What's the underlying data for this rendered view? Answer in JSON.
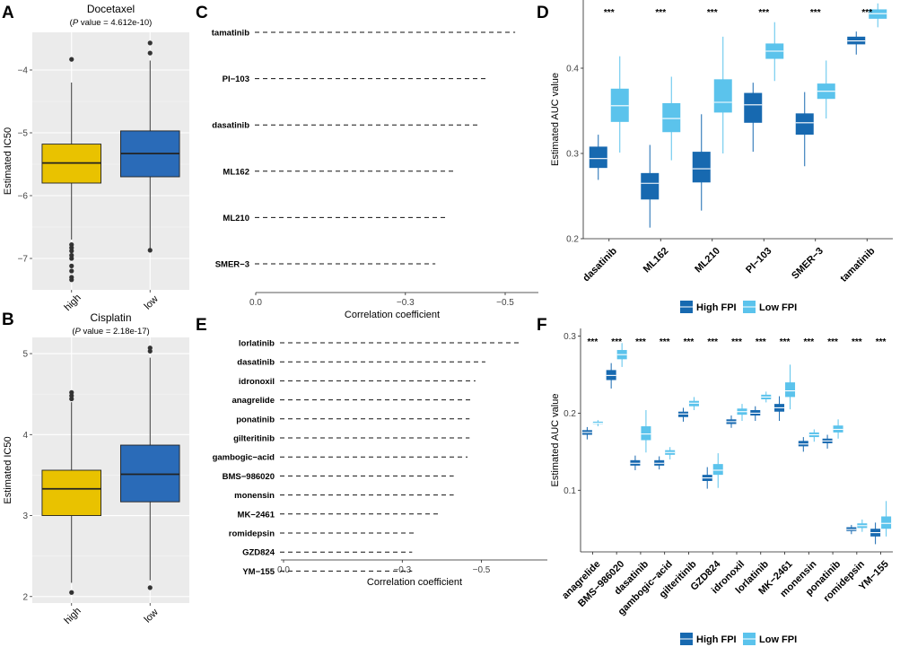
{
  "colors": {
    "high_ab": "#e9c200",
    "low_ab": "#2a6bb8",
    "high_fpi": "#1769b0",
    "low_fpi": "#5bc3ec",
    "panel_bg": "#ebebeb"
  },
  "panel_labels": {
    "a": "A",
    "b": "B",
    "c": "C",
    "d": "D",
    "e": "E",
    "f": "F"
  },
  "chart_data": [
    {
      "id": "A",
      "type": "box",
      "title": "Docetaxel",
      "subtitle_italic": "P",
      "subtitle_rest": " value = 4.612e-10)",
      "subtitle_open": "(",
      "ylabel": "Estimated IC50",
      "ylim": [
        -7.5,
        -3.4
      ],
      "yticks": [
        -7,
        -6,
        -5,
        -4
      ],
      "ytick_labels": [
        "−7",
        "−6",
        "−5",
        "−4"
      ],
      "categories": [
        "high",
        "low"
      ],
      "boxes": [
        {
          "q1": -5.8,
          "median": -5.48,
          "q3": -5.18,
          "wlo": -6.7,
          "whi": -4.2,
          "outliers": [
            -3.83,
            -6.78,
            -6.83,
            -6.88,
            -6.95,
            -7.0,
            -7.12,
            -7.2,
            -7.3,
            -7.34
          ]
        },
        {
          "q1": -5.7,
          "median": -5.33,
          "q3": -4.97,
          "wlo": -6.85,
          "whi": -3.85,
          "outliers": [
            -3.57,
            -3.73,
            -6.87
          ]
        }
      ]
    },
    {
      "id": "B",
      "type": "box",
      "title": "Cisplatin",
      "subtitle_italic": "P",
      "subtitle_rest": " value = 2.18e-17)",
      "subtitle_open": "(",
      "ylabel": "Estimated IC50",
      "ylim": [
        1.92,
        5.2
      ],
      "yticks": [
        2,
        3,
        4,
        5
      ],
      "ytick_labels": [
        "2",
        "3",
        "4",
        "5"
      ],
      "categories": [
        "high",
        "low"
      ],
      "boxes": [
        {
          "q1": 3.0,
          "median": 3.33,
          "q3": 3.56,
          "wlo": 2.17,
          "whi": 4.4,
          "outliers": [
            4.44,
            4.48,
            4.52,
            2.05
          ]
        },
        {
          "q1": 3.17,
          "median": 3.51,
          "q3": 3.87,
          "wlo": 2.2,
          "whi": 4.95,
          "outliers": [
            5.03,
            5.07,
            2.11
          ]
        }
      ]
    },
    {
      "id": "C",
      "type": "lollipop",
      "xlabel": "Correlation coefficient",
      "xticks": [
        "0.0",
        "−0.3",
        "−0.5"
      ],
      "drugs": [
        "tamatinib",
        "PI−103",
        "dasatinib",
        "ML162",
        "ML210",
        "SMER−3"
      ],
      "values": [
        -0.52,
        -0.465,
        -0.445,
        -0.4,
        -0.38,
        -0.36
      ]
    },
    {
      "id": "D",
      "type": "box",
      "ylabel": "Estimated AUC value",
      "ylim": [
        0.2,
        0.48
      ],
      "yticks": [
        0.2,
        0.3,
        0.4
      ],
      "ytick_labels": [
        "0.2",
        "0.3",
        "0.4"
      ],
      "categories": [
        "dasatinib",
        "ML162",
        "ML210",
        "PI−103",
        "SMER−3",
        "tamatinib"
      ],
      "sig": "***",
      "legend": [
        "High FPI",
        "Low FPI"
      ],
      "high": [
        {
          "q1": 0.283,
          "median": 0.294,
          "q3": 0.308,
          "wlo": 0.269,
          "whi": 0.322
        },
        {
          "q1": 0.246,
          "median": 0.265,
          "q3": 0.277,
          "wlo": 0.213,
          "whi": 0.31
        },
        {
          "q1": 0.266,
          "median": 0.282,
          "q3": 0.302,
          "wlo": 0.233,
          "whi": 0.346
        },
        {
          "q1": 0.336,
          "median": 0.357,
          "q3": 0.371,
          "wlo": 0.302,
          "whi": 0.383
        },
        {
          "q1": 0.322,
          "median": 0.336,
          "q3": 0.347,
          "wlo": 0.285,
          "whi": 0.372
        },
        {
          "q1": 0.428,
          "median": 0.432,
          "q3": 0.437,
          "wlo": 0.416,
          "whi": 0.443
        }
      ],
      "low": [
        {
          "q1": 0.337,
          "median": 0.356,
          "q3": 0.376,
          "wlo": 0.301,
          "whi": 0.414
        },
        {
          "q1": 0.325,
          "median": 0.341,
          "q3": 0.359,
          "wlo": 0.292,
          "whi": 0.39
        },
        {
          "q1": 0.348,
          "median": 0.36,
          "q3": 0.387,
          "wlo": 0.3,
          "whi": 0.437
        },
        {
          "q1": 0.411,
          "median": 0.42,
          "q3": 0.429,
          "wlo": 0.385,
          "whi": 0.454
        },
        {
          "q1": 0.364,
          "median": 0.373,
          "q3": 0.382,
          "wlo": 0.341,
          "whi": 0.409
        },
        {
          "q1": 0.458,
          "median": 0.464,
          "q3": 0.469,
          "wlo": 0.448,
          "whi": 0.476
        }
      ]
    },
    {
      "id": "E",
      "type": "lollipop",
      "xlabel": "Correlation coefficient",
      "xticks": [
        "0.0",
        "−0.3",
        "−0.5"
      ],
      "drugs": [
        "lorlatinib",
        "dasatinib",
        "idronoxil",
        "anagrelide",
        "ponatinib",
        "gilteritinib",
        "gambogic−acid",
        "BMS−986020",
        "monensin",
        "MK−2461",
        "romidepsin",
        "GZD824",
        "YM−155"
      ],
      "values": [
        -0.6,
        -0.51,
        -0.485,
        -0.475,
        -0.47,
        -0.47,
        -0.465,
        -0.43,
        -0.43,
        -0.39,
        -0.33,
        -0.325,
        -0.325
      ]
    },
    {
      "id": "F",
      "type": "box",
      "ylabel": "Estimated AUC value",
      "ylim": [
        0.02,
        0.31
      ],
      "yticks": [
        0.1,
        0.2,
        0.3
      ],
      "ytick_labels": [
        "0.1",
        "0.2",
        "0.3"
      ],
      "categories": [
        "anagrelide",
        "BMS−986020",
        "dasatinib",
        "gambogic−acid",
        "gilteritinib",
        "GZD824",
        "idronoxil",
        "lorlatinib",
        "MK−2461",
        "monensin",
        "ponatinib",
        "romidepsin",
        "YM−155"
      ],
      "sig": "***",
      "legend": [
        "High FPI",
        "Low FPI"
      ],
      "high": [
        {
          "q1": 0.172,
          "median": 0.175,
          "q3": 0.178,
          "wlo": 0.166,
          "whi": 0.182
        },
        {
          "q1": 0.243,
          "median": 0.249,
          "q3": 0.256,
          "wlo": 0.232,
          "whi": 0.265
        },
        {
          "q1": 0.132,
          "median": 0.135,
          "q3": 0.139,
          "wlo": 0.126,
          "whi": 0.145
        },
        {
          "q1": 0.132,
          "median": 0.135,
          "q3": 0.139,
          "wlo": 0.127,
          "whi": 0.144
        },
        {
          "q1": 0.195,
          "median": 0.199,
          "q3": 0.202,
          "wlo": 0.189,
          "whi": 0.207
        },
        {
          "q1": 0.112,
          "median": 0.116,
          "q3": 0.12,
          "wlo": 0.102,
          "whi": 0.13
        },
        {
          "q1": 0.186,
          "median": 0.189,
          "q3": 0.192,
          "wlo": 0.181,
          "whi": 0.197
        },
        {
          "q1": 0.197,
          "median": 0.2,
          "q3": 0.204,
          "wlo": 0.19,
          "whi": 0.209
        },
        {
          "q1": 0.202,
          "median": 0.207,
          "q3": 0.212,
          "wlo": 0.19,
          "whi": 0.222
        },
        {
          "q1": 0.157,
          "median": 0.16,
          "q3": 0.164,
          "wlo": 0.15,
          "whi": 0.169
        },
        {
          "q1": 0.161,
          "median": 0.164,
          "q3": 0.167,
          "wlo": 0.154,
          "whi": 0.172
        },
        {
          "q1": 0.047,
          "median": 0.049,
          "q3": 0.052,
          "wlo": 0.043,
          "whi": 0.055
        },
        {
          "q1": 0.04,
          "median": 0.045,
          "q3": 0.05,
          "wlo": 0.03,
          "whi": 0.058
        }
      ],
      "low": [
        {
          "q1": 0.186,
          "median": 0.187,
          "q3": 0.189,
          "wlo": 0.183,
          "whi": 0.191
        },
        {
          "q1": 0.27,
          "median": 0.276,
          "q3": 0.282,
          "wlo": 0.26,
          "whi": 0.291
        },
        {
          "q1": 0.165,
          "median": 0.173,
          "q3": 0.183,
          "wlo": 0.149,
          "whi": 0.204
        },
        {
          "q1": 0.146,
          "median": 0.149,
          "q3": 0.152,
          "wlo": 0.14,
          "whi": 0.156
        },
        {
          "q1": 0.209,
          "median": 0.213,
          "q3": 0.216,
          "wlo": 0.204,
          "whi": 0.221
        },
        {
          "q1": 0.12,
          "median": 0.126,
          "q3": 0.134,
          "wlo": 0.103,
          "whi": 0.148
        },
        {
          "q1": 0.198,
          "median": 0.202,
          "q3": 0.206,
          "wlo": 0.19,
          "whi": 0.212
        },
        {
          "q1": 0.218,
          "median": 0.221,
          "q3": 0.224,
          "wlo": 0.214,
          "whi": 0.228
        },
        {
          "q1": 0.221,
          "median": 0.229,
          "q3": 0.24,
          "wlo": 0.205,
          "whi": 0.263
        },
        {
          "q1": 0.169,
          "median": 0.172,
          "q3": 0.175,
          "wlo": 0.163,
          "whi": 0.179
        },
        {
          "q1": 0.175,
          "median": 0.179,
          "q3": 0.184,
          "wlo": 0.167,
          "whi": 0.192
        },
        {
          "q1": 0.051,
          "median": 0.054,
          "q3": 0.057,
          "wlo": 0.046,
          "whi": 0.062
        },
        {
          "q1": 0.05,
          "median": 0.057,
          "q3": 0.066,
          "wlo": 0.04,
          "whi": 0.086
        }
      ]
    }
  ]
}
